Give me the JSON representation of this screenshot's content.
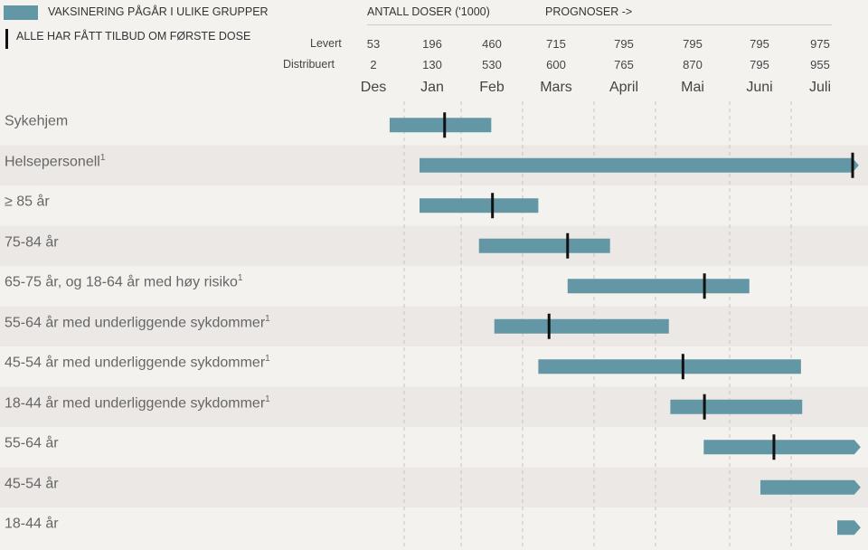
{
  "colors": {
    "bar": "#6497a5",
    "marker": "#111111",
    "row_alt": "#ece8e5",
    "row": "#f3f2ee"
  },
  "legend": {
    "bar_label": "VAKSINERING PÅGÅR I ULIKE GRUPPER",
    "marker_label": "ALLE HAR FÅTT TILBUD OM FØRSTE DOSE"
  },
  "header": {
    "doses_title": "ANTALL DOSER ('1000)",
    "forecast_title": "PROGNOSER ->",
    "levert_label": "Levert",
    "distribuert_label": "Distribuert"
  },
  "chart_data": {
    "type": "gantt",
    "months": [
      "Des",
      "Jan",
      "Feb",
      "Mars",
      "April",
      "Mai",
      "Juni",
      "Juli"
    ],
    "levert": [
      "53",
      "196",
      "460",
      "715",
      "795",
      "795",
      "795",
      "975"
    ],
    "distribuert": [
      "2",
      "130",
      "530",
      "600",
      "765",
      "870",
      "795",
      "955"
    ],
    "unit": "month index (0 = start of Des)",
    "rows": [
      {
        "label": "Sykehjem",
        "sup": "",
        "start": 0.76,
        "end": 2.49,
        "marker": 1.71,
        "arrow": false
      },
      {
        "label": "Helsepersonell",
        "sup": "1",
        "start": 1.27,
        "end": 8.1,
        "marker": 8.0,
        "arrow": true
      },
      {
        "label": "≥ 85 år",
        "sup": "",
        "start": 1.27,
        "end": 3.22,
        "marker": 2.51,
        "arrow": false
      },
      {
        "label": "75-84 år",
        "sup": "",
        "start": 2.29,
        "end": 4.26,
        "marker": 3.63,
        "arrow": false
      },
      {
        "label": "65-75 år, og 18-64 år med høy risiko",
        "sup": "1",
        "start": 3.63,
        "end": 6.32,
        "marker": 5.66,
        "arrow": false
      },
      {
        "label": "55-64 år med underliggende sykdommer",
        "sup": "1",
        "start": 2.54,
        "end": 5.18,
        "marker": 3.37,
        "arrow": false
      },
      {
        "label": "45-54 år med underliggende sykdommer",
        "sup": "1",
        "start": 3.22,
        "end": 7.16,
        "marker": 5.37,
        "arrow": false
      },
      {
        "label": "18-44 år med underliggende sykdommer",
        "sup": "1",
        "start": 5.2,
        "end": 7.18,
        "marker": 5.66,
        "arrow": false
      },
      {
        "label": "55-64 år",
        "sup": "",
        "start": 5.65,
        "end": 8.13,
        "marker": 6.72,
        "arrow": true
      },
      {
        "label": "45-54 år",
        "sup": "",
        "start": 6.5,
        "end": 8.13,
        "marker": null,
        "arrow": true
      },
      {
        "label": "18-44 år",
        "sup": "",
        "start": 7.75,
        "end": 8.13,
        "marker": null,
        "arrow": true
      }
    ]
  }
}
